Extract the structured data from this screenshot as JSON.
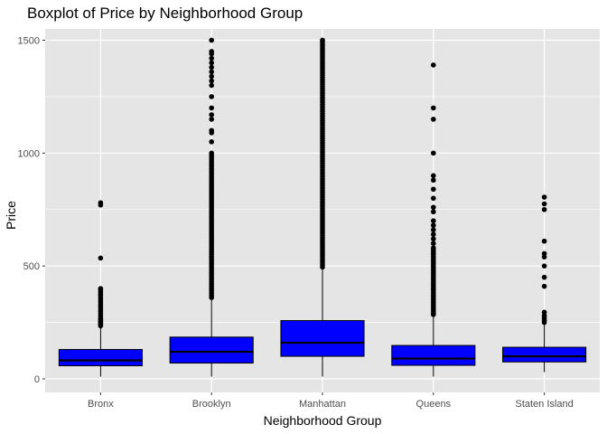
{
  "chart_data": {
    "type": "boxplot",
    "title": "Boxplot of Price by Neighborhood Group",
    "xlabel": "Neighborhood Group",
    "ylabel": "Price",
    "ylim": [
      -60,
      1550
    ],
    "yticks": [
      0,
      500,
      1000,
      1500
    ],
    "grid": true,
    "legend": "none",
    "colors": {
      "panel": "#e5e5e5",
      "grid": "#ffffff",
      "box_fill": "#0000ff",
      "stroke": "#000000",
      "tick_text": "#4d4d4d"
    },
    "categories": [
      "Bronx",
      "Brooklyn",
      "Manhattan",
      "Queens",
      "Staten Island"
    ],
    "boxes": [
      {
        "category": "Bronx",
        "whisker_low": 10,
        "q1": 58,
        "median": 82,
        "q3": 130,
        "whisker_high": 230,
        "outliers": [
          235,
          240,
          245,
          250,
          255,
          260,
          265,
          270,
          280,
          290,
          300,
          310,
          320,
          330,
          340,
          350,
          360,
          370,
          375,
          385,
          395,
          400,
          535,
          770,
          780
        ]
      },
      {
        "category": "Brooklyn",
        "whisker_low": 10,
        "q1": 70,
        "median": 120,
        "q3": 185,
        "whisker_high": 355,
        "outliers": [
          360,
          370,
          380,
          390,
          400,
          410,
          420,
          430,
          440,
          450,
          460,
          470,
          480,
          490,
          500,
          510,
          520,
          530,
          540,
          550,
          560,
          570,
          580,
          590,
          600,
          610,
          620,
          630,
          640,
          650,
          660,
          670,
          680,
          690,
          700,
          710,
          720,
          730,
          740,
          750,
          760,
          770,
          780,
          790,
          800,
          810,
          820,
          830,
          840,
          850,
          860,
          870,
          880,
          890,
          900,
          910,
          920,
          930,
          940,
          950,
          960,
          970,
          980,
          990,
          1000,
          1050,
          1090,
          1100,
          1150,
          1170,
          1200,
          1250,
          1300,
          1320,
          1340,
          1360,
          1380,
          1400,
          1420,
          1440,
          1450,
          1500
        ]
      },
      {
        "category": "Manhattan",
        "whisker_low": 10,
        "q1": 100,
        "median": 160,
        "q3": 258,
        "whisker_high": 490,
        "outliers": [
          495,
          505,
          515,
          525,
          535,
          545,
          555,
          565,
          575,
          585,
          595,
          605,
          615,
          625,
          635,
          645,
          655,
          665,
          675,
          685,
          695,
          705,
          715,
          725,
          735,
          745,
          755,
          765,
          775,
          785,
          795,
          805,
          815,
          825,
          835,
          845,
          855,
          865,
          875,
          885,
          895,
          905,
          915,
          925,
          935,
          945,
          955,
          965,
          975,
          985,
          995,
          1005,
          1015,
          1025,
          1035,
          1045,
          1055,
          1065,
          1075,
          1085,
          1095,
          1105,
          1115,
          1125,
          1135,
          1145,
          1155,
          1165,
          1175,
          1185,
          1195,
          1205,
          1215,
          1225,
          1235,
          1245,
          1255,
          1265,
          1275,
          1285,
          1295,
          1305,
          1315,
          1325,
          1335,
          1345,
          1355,
          1365,
          1375,
          1385,
          1395,
          1405,
          1415,
          1425,
          1435,
          1445,
          1455,
          1465,
          1475,
          1485,
          1495,
          1500
        ]
      },
      {
        "category": "Queens",
        "whisker_low": 10,
        "q1": 60,
        "median": 90,
        "q3": 148,
        "whisker_high": 280,
        "outliers": [
          285,
          290,
          300,
          310,
          320,
          330,
          340,
          350,
          360,
          370,
          380,
          390,
          400,
          410,
          420,
          430,
          440,
          450,
          460,
          470,
          480,
          490,
          500,
          510,
          520,
          530,
          540,
          550,
          560,
          570,
          580,
          600,
          620,
          640,
          660,
          680,
          700,
          740,
          760,
          800,
          840,
          880,
          900,
          1000,
          1150,
          1200,
          1390
        ]
      },
      {
        "category": "Staten Island",
        "whisker_low": 30,
        "q1": 75,
        "median": 100,
        "q3": 140,
        "whisker_high": 240,
        "outliers": [
          250,
          260,
          270,
          280,
          295,
          410,
          450,
          500,
          540,
          555,
          610,
          750,
          775,
          805
        ]
      }
    ]
  }
}
